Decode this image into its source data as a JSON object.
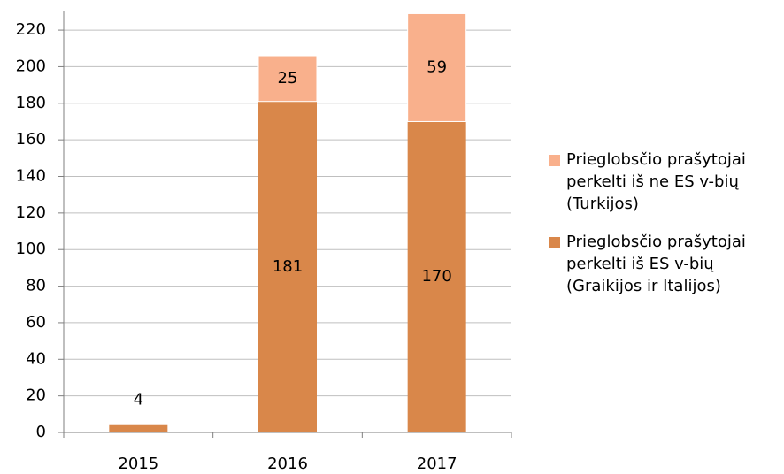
{
  "chart_data": {
    "type": "bar",
    "stacked": true,
    "categories": [
      "2015",
      "2016",
      "2017"
    ],
    "series": [
      {
        "name": "Prieglobsčio prašytojai perkelti iš ES v-bių (Graikijos ir Italijos)",
        "color": "#d9874a",
        "values": [
          4,
          181,
          170
        ]
      },
      {
        "name": "Prieglobsčio prašytojai perkelti iš ne ES v-bių (Turkijos)",
        "color": "#f9b08c",
        "values": [
          null,
          25,
          59
        ]
      }
    ],
    "ylim": [
      0,
      230
    ],
    "yticks": [
      0,
      20,
      40,
      60,
      80,
      100,
      120,
      140,
      160,
      180,
      200,
      220
    ],
    "grid": true,
    "legend": "right"
  }
}
